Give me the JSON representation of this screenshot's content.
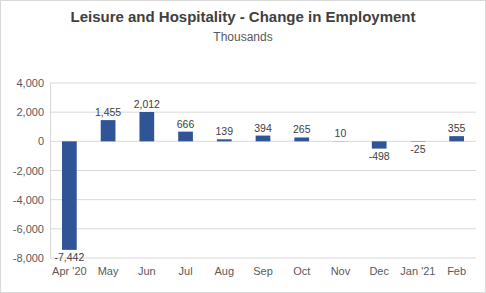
{
  "chart_data": {
    "type": "bar",
    "title": "Leisure and Hospitality - Change in Employment",
    "subtitle": "Thousands",
    "categories": [
      "Apr '20",
      "May",
      "Jun",
      "Jul",
      "Aug",
      "Sep",
      "Oct",
      "Nov",
      "Dec",
      "Jan '21",
      "Feb"
    ],
    "values": [
      -7442,
      1455,
      2012,
      666,
      139,
      394,
      265,
      10,
      -498,
      -25,
      355
    ],
    "value_labels": [
      "-7,442",
      "1,455",
      "2,012",
      "666",
      "139",
      "394",
      "265",
      "10",
      "-498",
      "-25",
      "355"
    ],
    "color": "#2f5597",
    "ylim": [
      -8000,
      4000
    ],
    "yticks": [
      {
        "value": -8000,
        "label": "-8,000"
      },
      {
        "value": -6000,
        "label": "-6,000"
      },
      {
        "value": -4000,
        "label": "-4,000"
      },
      {
        "value": -2000,
        "label": "-2,000"
      },
      0,
      {
        "value": 2000,
        "label": "2,000"
      },
      {
        "value": 4000,
        "label": "4,000"
      }
    ],
    "grid": true,
    "data_labels": true
  }
}
